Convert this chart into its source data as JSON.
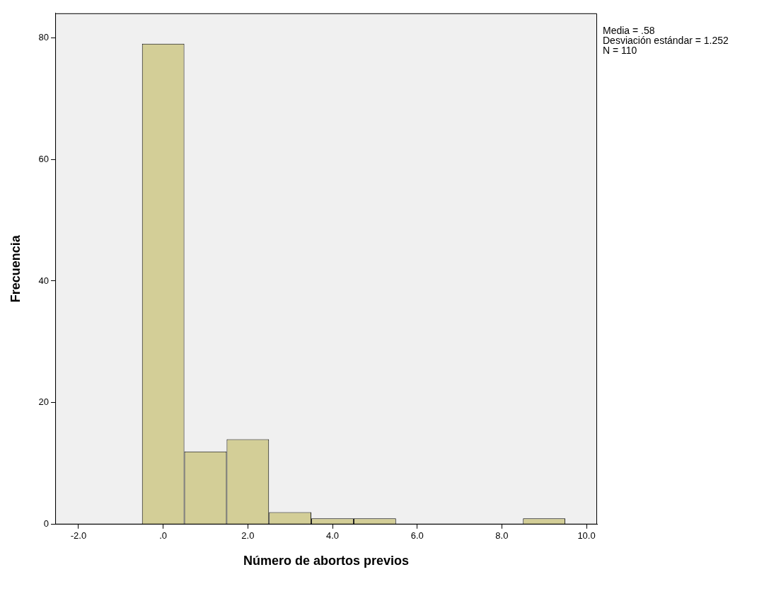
{
  "chart_data": {
    "type": "histogram",
    "xlabel": "Número de abortos previos",
    "ylabel": "Frecuencia",
    "bins": [
      -0.5,
      0.5,
      1.5,
      2.5,
      3.5,
      4.5,
      5.5,
      6.5,
      7.5,
      8.5,
      9.5
    ],
    "values": [
      79,
      12,
      14,
      2,
      1,
      1,
      0,
      0,
      0,
      1
    ],
    "color": "#d3ce97",
    "xlim": [
      -2.55,
      10.25
    ],
    "xticks": [
      {
        "value": -2,
        "label": "-2.0"
      },
      {
        "value": 0,
        "label": ".0"
      },
      {
        "value": 2,
        "label": "2.0"
      },
      {
        "value": 4,
        "label": "4.0"
      },
      {
        "value": 6,
        "label": "6.0"
      },
      {
        "value": 8,
        "label": "8.0"
      },
      {
        "value": 10,
        "label": "10.0"
      }
    ],
    "ylim": [
      0,
      84
    ],
    "yticks": [
      0,
      20,
      40,
      60,
      80
    ],
    "grid": false,
    "legend": false,
    "annotations": [
      "Media = .58",
      "Desviación estándar = 1.252",
      "N = 110"
    ]
  }
}
